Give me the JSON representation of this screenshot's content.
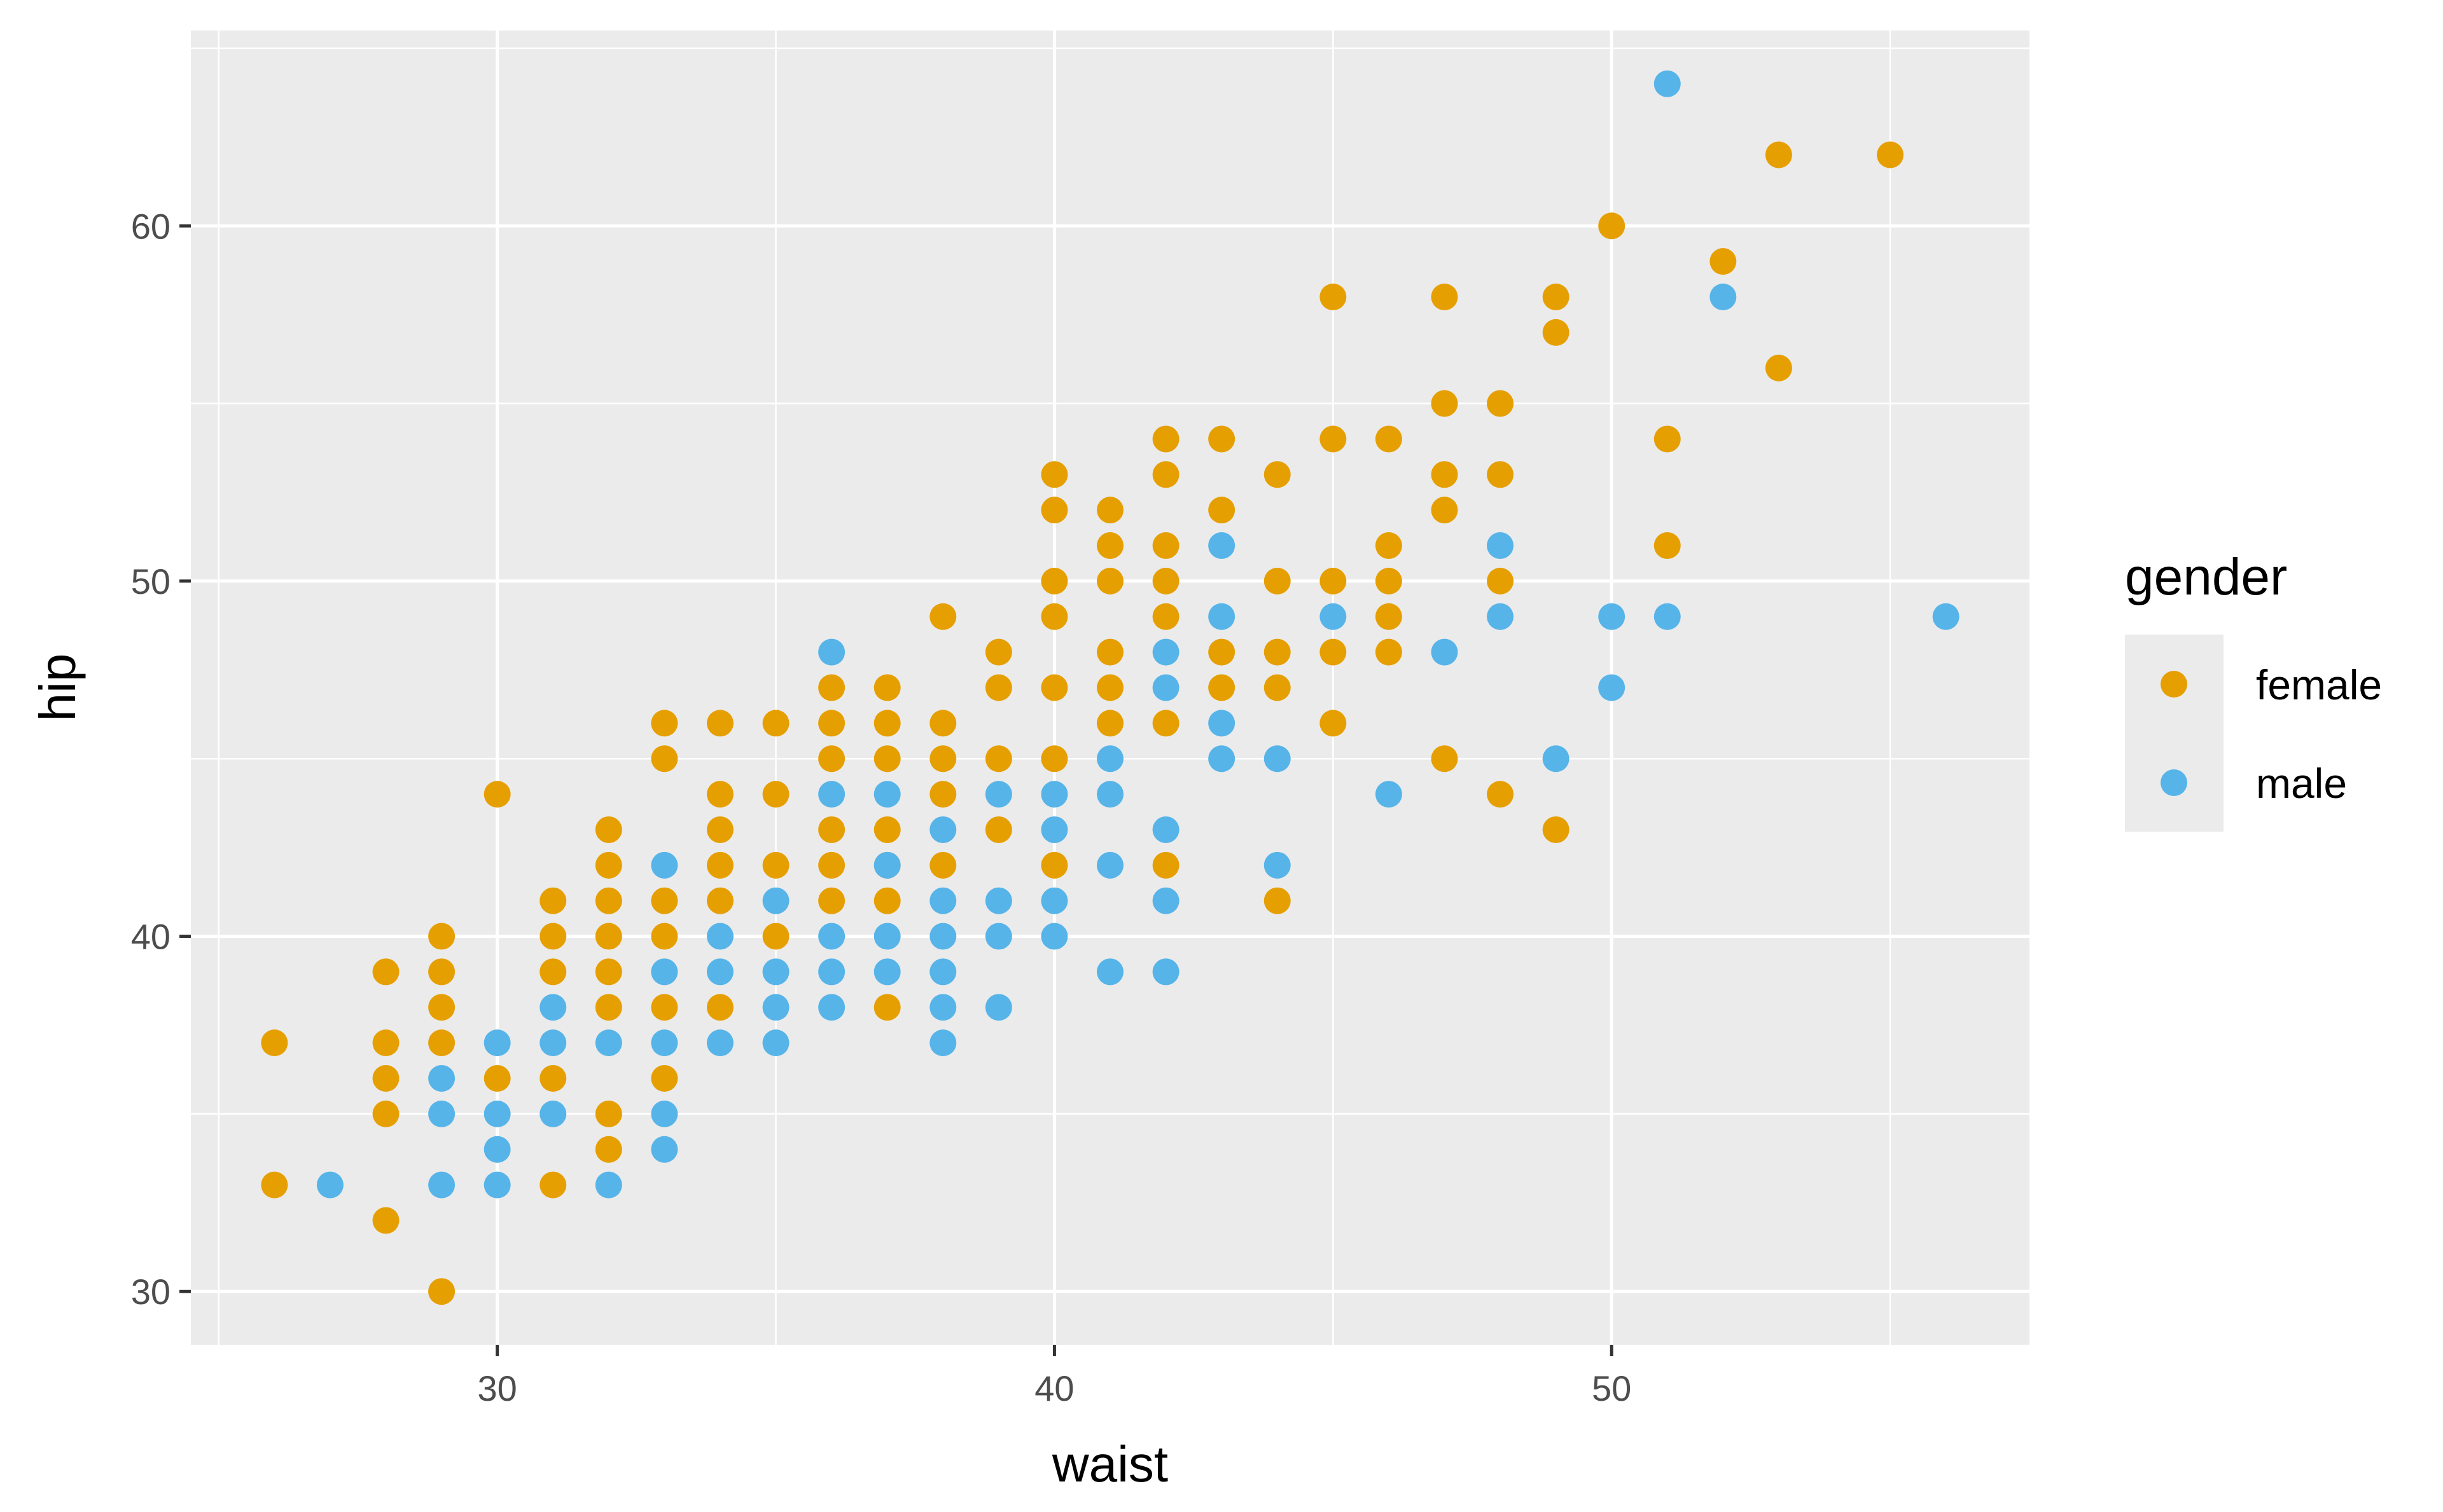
{
  "chart_data": {
    "type": "scatter",
    "title": "",
    "xlabel": "waist",
    "ylabel": "hip",
    "xlim": [
      24.5,
      57.5
    ],
    "ylim": [
      28.5,
      65.5
    ],
    "x_ticks": [
      30,
      40,
      50
    ],
    "y_ticks": [
      30,
      40,
      50,
      60
    ],
    "x_minor": [
      25,
      35,
      45,
      55
    ],
    "y_minor": [
      35,
      45,
      55,
      65
    ],
    "grid": true,
    "panel_color": "#ebebeb",
    "legend": {
      "title": "gender",
      "position": "right",
      "entries": [
        "female",
        "male"
      ]
    },
    "series": [
      {
        "name": "female",
        "color": "#E69F00",
        "points": [
          [
            26,
            37
          ],
          [
            26,
            33
          ],
          [
            28,
            39
          ],
          [
            28,
            37
          ],
          [
            28,
            36
          ],
          [
            28,
            35
          ],
          [
            28,
            32
          ],
          [
            29,
            40
          ],
          [
            29,
            39
          ],
          [
            29,
            38
          ],
          [
            29,
            37
          ],
          [
            29,
            30
          ],
          [
            30,
            44
          ],
          [
            30,
            36
          ],
          [
            31,
            41
          ],
          [
            31,
            40
          ],
          [
            31,
            39
          ],
          [
            31,
            36
          ],
          [
            31,
            33
          ],
          [
            32,
            43
          ],
          [
            32,
            42
          ],
          [
            32,
            41
          ],
          [
            32,
            40
          ],
          [
            32,
            39
          ],
          [
            32,
            38
          ],
          [
            32,
            35
          ],
          [
            32,
            34
          ],
          [
            33,
            46
          ],
          [
            33,
            45
          ],
          [
            33,
            41
          ],
          [
            33,
            40
          ],
          [
            33,
            38
          ],
          [
            33,
            36
          ],
          [
            34,
            46
          ],
          [
            34,
            44
          ],
          [
            34,
            43
          ],
          [
            34,
            42
          ],
          [
            34,
            41
          ],
          [
            34,
            38
          ],
          [
            35,
            46
          ],
          [
            35,
            44
          ],
          [
            35,
            42
          ],
          [
            35,
            40
          ],
          [
            36,
            47
          ],
          [
            36,
            46
          ],
          [
            36,
            45
          ],
          [
            36,
            43
          ],
          [
            36,
            42
          ],
          [
            36,
            41
          ],
          [
            37,
            47
          ],
          [
            37,
            46
          ],
          [
            37,
            45
          ],
          [
            37,
            43
          ],
          [
            37,
            42
          ],
          [
            37,
            41
          ],
          [
            37,
            38
          ],
          [
            38,
            49
          ],
          [
            38,
            46
          ],
          [
            38,
            45
          ],
          [
            38,
            44
          ],
          [
            38,
            42
          ],
          [
            39,
            48
          ],
          [
            39,
            47
          ],
          [
            39,
            45
          ],
          [
            39,
            43
          ],
          [
            40,
            53
          ],
          [
            40,
            52
          ],
          [
            40,
            50
          ],
          [
            40,
            49
          ],
          [
            40,
            47
          ],
          [
            40,
            45
          ],
          [
            40,
            42
          ],
          [
            41,
            52
          ],
          [
            41,
            51
          ],
          [
            41,
            50
          ],
          [
            41,
            48
          ],
          [
            41,
            47
          ],
          [
            41,
            46
          ],
          [
            42,
            54
          ],
          [
            42,
            53
          ],
          [
            42,
            51
          ],
          [
            42,
            50
          ],
          [
            42,
            49
          ],
          [
            42,
            46
          ],
          [
            42,
            42
          ],
          [
            43,
            54
          ],
          [
            43,
            52
          ],
          [
            43,
            48
          ],
          [
            43,
            47
          ],
          [
            44,
            53
          ],
          [
            44,
            50
          ],
          [
            44,
            48
          ],
          [
            44,
            47
          ],
          [
            44,
            41
          ],
          [
            45,
            58
          ],
          [
            45,
            54
          ],
          [
            45,
            50
          ],
          [
            45,
            48
          ],
          [
            45,
            46
          ],
          [
            46,
            54
          ],
          [
            46,
            51
          ],
          [
            46,
            50
          ],
          [
            46,
            49
          ],
          [
            46,
            48
          ],
          [
            47,
            58
          ],
          [
            47,
            55
          ],
          [
            47,
            53
          ],
          [
            47,
            52
          ],
          [
            47,
            45
          ],
          [
            48,
            55
          ],
          [
            48,
            53
          ],
          [
            48,
            50
          ],
          [
            48,
            44
          ],
          [
            49,
            58
          ],
          [
            49,
            57
          ],
          [
            49,
            43
          ],
          [
            50,
            60
          ],
          [
            51,
            54
          ],
          [
            51,
            51
          ],
          [
            52,
            59
          ],
          [
            53,
            62
          ],
          [
            53,
            56
          ],
          [
            55,
            62
          ]
        ]
      },
      {
        "name": "male",
        "color": "#56B4E9",
        "points": [
          [
            27,
            33
          ],
          [
            29,
            36
          ],
          [
            29,
            35
          ],
          [
            29,
            33
          ],
          [
            30,
            37
          ],
          [
            30,
            35
          ],
          [
            30,
            34
          ],
          [
            30,
            33
          ],
          [
            31,
            38
          ],
          [
            31,
            37
          ],
          [
            31,
            35
          ],
          [
            32,
            37
          ],
          [
            32,
            33
          ],
          [
            33,
            42
          ],
          [
            33,
            39
          ],
          [
            33,
            37
          ],
          [
            33,
            35
          ],
          [
            33,
            34
          ],
          [
            34,
            40
          ],
          [
            34,
            39
          ],
          [
            34,
            37
          ],
          [
            35,
            41
          ],
          [
            35,
            39
          ],
          [
            35,
            38
          ],
          [
            35,
            37
          ],
          [
            36,
            48
          ],
          [
            36,
            44
          ],
          [
            36,
            40
          ],
          [
            36,
            39
          ],
          [
            36,
            38
          ],
          [
            37,
            44
          ],
          [
            37,
            42
          ],
          [
            37,
            40
          ],
          [
            37,
            39
          ],
          [
            38,
            43
          ],
          [
            38,
            41
          ],
          [
            38,
            40
          ],
          [
            38,
            39
          ],
          [
            38,
            38
          ],
          [
            38,
            37
          ],
          [
            39,
            44
          ],
          [
            39,
            41
          ],
          [
            39,
            40
          ],
          [
            39,
            38
          ],
          [
            40,
            44
          ],
          [
            40,
            43
          ],
          [
            40,
            41
          ],
          [
            40,
            40
          ],
          [
            41,
            45
          ],
          [
            41,
            44
          ],
          [
            41,
            42
          ],
          [
            41,
            39
          ],
          [
            42,
            48
          ],
          [
            42,
            47
          ],
          [
            42,
            43
          ],
          [
            42,
            41
          ],
          [
            42,
            39
          ],
          [
            43,
            51
          ],
          [
            43,
            49
          ],
          [
            43,
            46
          ],
          [
            43,
            45
          ],
          [
            44,
            45
          ],
          [
            44,
            42
          ],
          [
            45,
            49
          ],
          [
            46,
            44
          ],
          [
            47,
            48
          ],
          [
            48,
            51
          ],
          [
            48,
            49
          ],
          [
            49,
            45
          ],
          [
            50,
            49
          ],
          [
            50,
            47
          ],
          [
            51,
            64
          ],
          [
            51,
            49
          ],
          [
            52,
            58
          ],
          [
            56,
            49
          ]
        ]
      }
    ]
  }
}
